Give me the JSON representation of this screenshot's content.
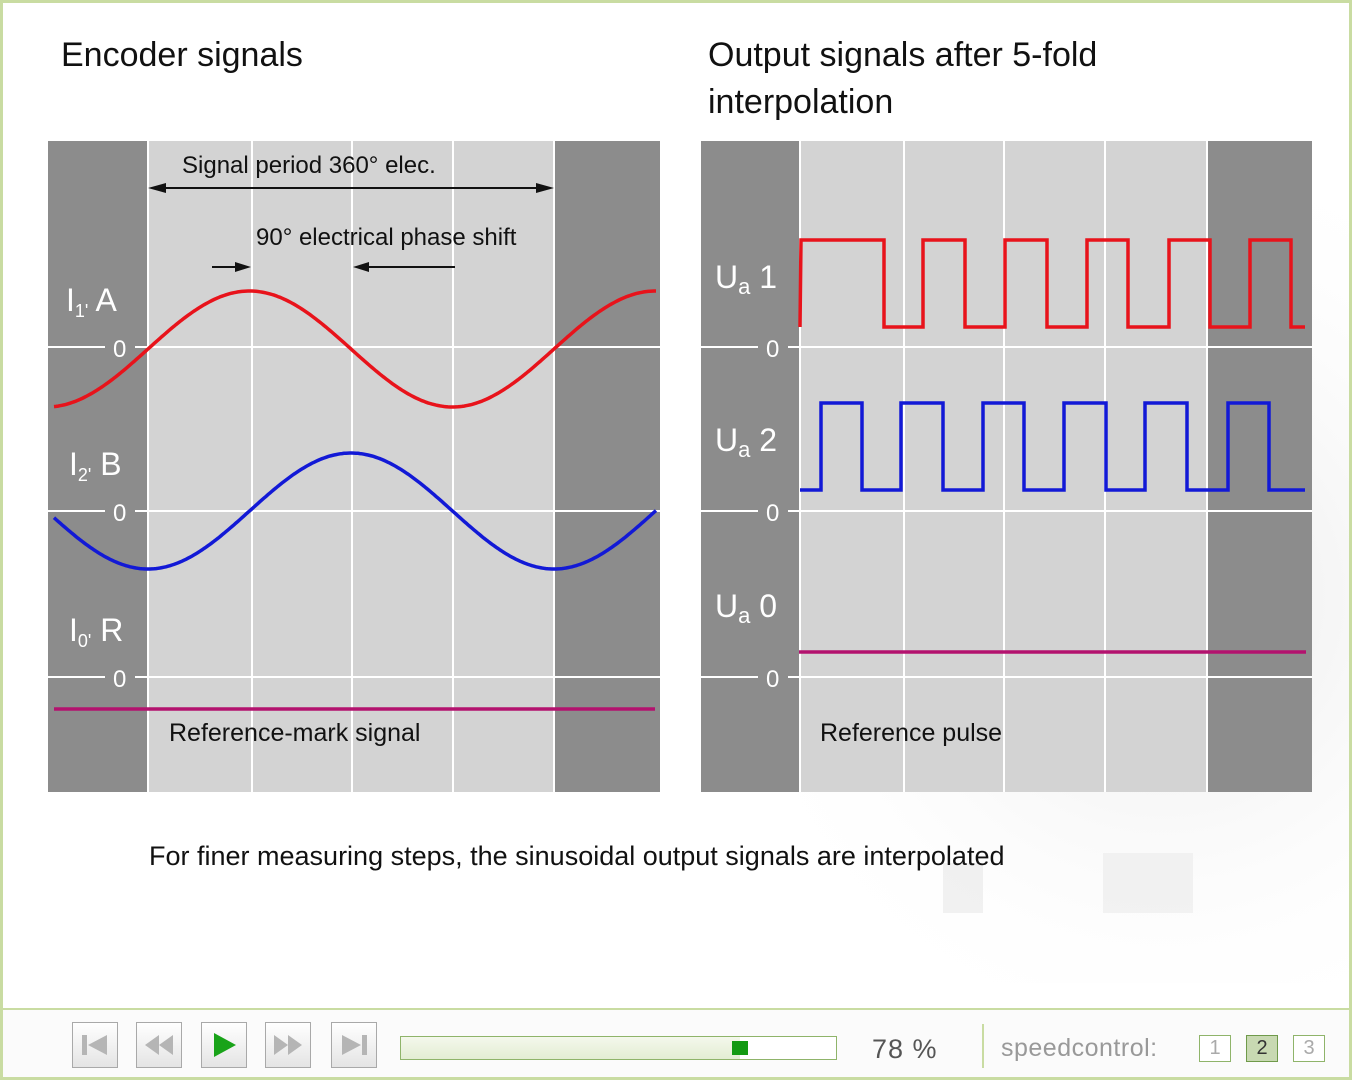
{
  "headings": {
    "left": "Encoder signals",
    "right_line1": "Output signals after 5-fold",
    "right_line2": "interpolation"
  },
  "left_panel": {
    "period_label": "Signal period 360° elec.",
    "phase_label": "90° electrical phase shift",
    "tracks": [
      {
        "label_main": "I",
        "label_sub": "1'",
        "label_suffix": " A",
        "zero": "0"
      },
      {
        "label_main": "I",
        "label_sub": "2'",
        "label_suffix": " B",
        "zero": "0"
      },
      {
        "label_main": "I",
        "label_sub": "0'",
        "label_suffix": " R",
        "zero": "0"
      }
    ],
    "reference_label": "Reference-mark signal"
  },
  "right_panel": {
    "tracks": [
      {
        "label_main": "U",
        "label_sub": "a",
        "label_suffix": " 1",
        "zero": "0"
      },
      {
        "label_main": "U",
        "label_sub": "a",
        "label_suffix": " 2",
        "zero": "0"
      },
      {
        "label_main": "U",
        "label_sub": "a",
        "label_suffix": " 0",
        "zero": "0"
      }
    ],
    "reference_label": "Reference pulse"
  },
  "colors": {
    "signal_a": "#e8131b",
    "signal_b": "#1219d6",
    "reference": "#b3126e",
    "panel_dark": "#8c8c8c",
    "panel_light": "#d3d3d3"
  },
  "caption": "For finer measuring steps, the sinusoidal output signals are interpolated",
  "player": {
    "buttons": [
      "skip-to-start-icon",
      "rewind-icon",
      "play-icon",
      "fast-forward-icon",
      "skip-to-end-icon"
    ],
    "progress_fraction": 0.78,
    "progress_text": "78  %",
    "speed_label": "speedcontrol:",
    "speed_options": [
      "1",
      "2",
      "3"
    ],
    "speed_selected": "2"
  }
}
